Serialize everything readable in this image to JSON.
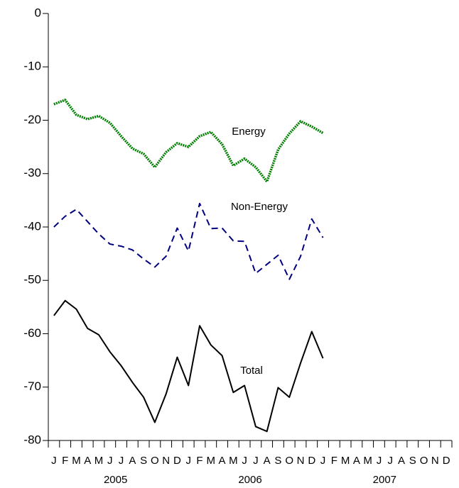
{
  "chart_data": {
    "type": "line",
    "categories": [
      "J",
      "F",
      "M",
      "A",
      "M",
      "J",
      "J",
      "A",
      "S",
      "O",
      "N",
      "D",
      "J",
      "F",
      "M",
      "A",
      "M",
      "J",
      "J",
      "A",
      "S",
      "O",
      "N",
      "D",
      "J",
      "F",
      "M",
      "A",
      "M",
      "J",
      "J",
      "A",
      "S",
      "O",
      "N",
      "D"
    ],
    "x_groups": [
      "2005",
      "2006",
      "2007"
    ],
    "series": [
      {
        "name": "Energy",
        "color": "#008000",
        "style": "dotted",
        "values": [
          -17,
          -16.2,
          -19,
          -19.8,
          -19.2,
          -20.5,
          -23,
          -25.3,
          -26.3,
          -28.8,
          -26,
          -24.3,
          -25,
          -23,
          -22.2,
          -24.5,
          -28.5,
          -27.2,
          -28.8,
          -31.5,
          -25.5,
          -22.5,
          -20.2,
          -21.2,
          -22.4,
          null,
          null,
          null,
          null,
          null,
          null,
          null,
          null,
          null,
          null,
          null
        ]
      },
      {
        "name": "Non-Energy",
        "color": "#000080",
        "style": "dashed",
        "values": [
          -40,
          -38,
          -36.7,
          -39,
          -41.3,
          -43.2,
          -43.6,
          -44.3,
          -46,
          -47.5,
          -45.5,
          -40.2,
          -44.5,
          -35.6,
          -40.3,
          -40.2,
          -42.6,
          -42.7,
          -48.7,
          -47,
          -45.3,
          -49.8,
          -45.5,
          -38.5,
          -42,
          null,
          null,
          null,
          null,
          null,
          null,
          null,
          null,
          null,
          null,
          null
        ]
      },
      {
        "name": "Total",
        "color": "#000000",
        "style": "solid",
        "values": [
          -56.6,
          -53.8,
          -55.4,
          -59,
          -60.2,
          -63.4,
          -66,
          -69.1,
          -71.9,
          -76.6,
          -71.3,
          -64.4,
          -69.7,
          -58.5,
          -62.1,
          -64.1,
          -71,
          -69.7,
          -77.4,
          -78.3,
          -70.1,
          -71.9,
          -65.5,
          -59.6,
          -64.6,
          null,
          null,
          null,
          null,
          null,
          null,
          null,
          null,
          null,
          null,
          null
        ]
      }
    ],
    "ylim": [
      -80,
      0
    ],
    "yticks": [
      0,
      -10,
      -20,
      -30,
      -40,
      -50,
      -60,
      -70,
      -80
    ],
    "grid": false
  }
}
